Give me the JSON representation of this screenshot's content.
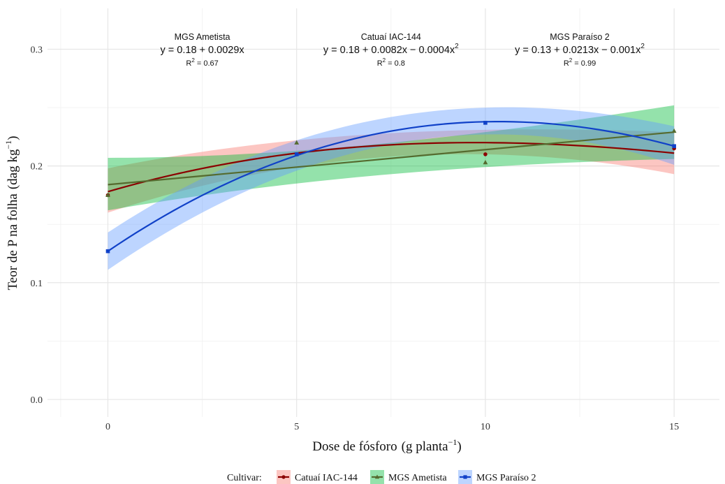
{
  "chart_data": {
    "type": "line",
    "xlabel": "Dose de fósforo",
    "xlabel_unit": "g planta",
    "xlabel_unit_exp": "−1",
    "ylabel": "Teor de P na folha",
    "ylabel_unit": "dag kg",
    "ylabel_unit_exp": "−1",
    "xlim": [
      -1.6,
      16.2
    ],
    "ylim": [
      -0.015,
      0.335
    ],
    "x_ticks": [
      0,
      5,
      10,
      15
    ],
    "x_tick_labels": [
      "0",
      "5",
      "10",
      "15"
    ],
    "y_ticks": [
      0.0,
      0.1,
      0.2,
      0.3
    ],
    "y_tick_labels": [
      "0.0",
      "0.1",
      "0.2",
      "0.3"
    ],
    "grid": true,
    "legend_position": "bottom",
    "legend_title": "Cultivar:",
    "series": [
      {
        "name": "Catuaí IAC-144",
        "color": "#8b0000",
        "band_color": "#f8766d",
        "marker": "circle",
        "coef": [
          0.18,
          0.0082,
          -0.0004
        ],
        "x": [
          0,
          5,
          10,
          15
        ],
        "y": [
          0.175,
          0.21,
          0.21,
          0.215
        ],
        "fit_line": [
          [
            0,
            0.178
          ],
          [
            5,
            0.211
          ],
          [
            10,
            0.22
          ],
          [
            15,
            0.211
          ]
        ],
        "band_lower": [
          [
            0,
            0.16
          ],
          [
            5,
            0.199
          ],
          [
            10,
            0.21
          ],
          [
            15,
            0.193
          ]
        ],
        "band_upper": [
          [
            0,
            0.198
          ],
          [
            5,
            0.222
          ],
          [
            10,
            0.231
          ],
          [
            15,
            0.229
          ]
        ]
      },
      {
        "name": "MGS Ametista",
        "color": "#556b2f",
        "band_color": "#00ba38",
        "marker": "triangle",
        "coef": [
          0.184,
          0.003,
          0
        ],
        "x": [
          0,
          5,
          10,
          15
        ],
        "y": [
          0.175,
          0.22,
          0.203,
          0.23
        ],
        "fit_line": [
          [
            0,
            0.184
          ],
          [
            15,
            0.229
          ]
        ],
        "band_lower": [
          [
            0,
            0.162
          ],
          [
            5,
            0.185
          ],
          [
            10,
            0.199
          ],
          [
            15,
            0.206
          ]
        ],
        "band_upper": [
          [
            0,
            0.207
          ],
          [
            5,
            0.213
          ],
          [
            10,
            0.229
          ],
          [
            15,
            0.252
          ]
        ]
      },
      {
        "name": "MGS Paraíso 2",
        "color": "#1041c8",
        "band_color": "#619cff",
        "marker": "square",
        "coef": [
          0.127,
          0.0213,
          -0.001
        ],
        "x": [
          0,
          5,
          10,
          15
        ],
        "y": [
          0.127,
          0.21,
          0.237,
          0.217
        ],
        "fit_line": [
          [
            0,
            0.127
          ],
          [
            5,
            0.209
          ],
          [
            10.5,
            0.238
          ],
          [
            15,
            0.217
          ]
        ],
        "band_lower": [
          [
            0,
            0.111
          ],
          [
            5,
            0.196
          ],
          [
            10,
            0.227
          ],
          [
            15,
            0.201
          ]
        ],
        "band_upper": [
          [
            0,
            0.143
          ],
          [
            5,
            0.222
          ],
          [
            10,
            0.25
          ],
          [
            15,
            0.234
          ]
        ]
      }
    ],
    "annotations": [
      {
        "name": "MGS Ametista",
        "equation": "y = 0.18 + 0.0029x",
        "eq_sup": "",
        "r2_label": "R",
        "r2_sup": "2",
        "r2_value": " = 0.67",
        "x": 2.5
      },
      {
        "name": "Catuaí IAC-144",
        "equation": "y = 0.18 + 0.0082x − 0.0004x",
        "eq_sup": "2",
        "r2_label": "R",
        "r2_sup": "2",
        "r2_value": " = 0.8",
        "x": 7.5
      },
      {
        "name": "MGS Paraíso 2",
        "equation": "y = 0.13 + 0.0213x − 0.001x",
        "eq_sup": "2",
        "r2_label": "R",
        "r2_sup": "2",
        "r2_value": " = 0.99",
        "x": 12.5
      }
    ]
  }
}
